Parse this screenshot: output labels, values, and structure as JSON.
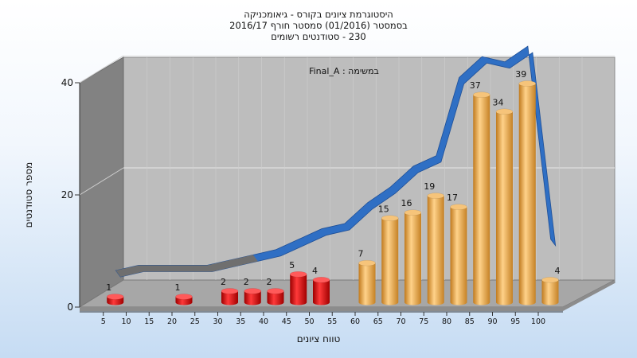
{
  "chart_data": {
    "type": "bar",
    "title_lines": [
      "היסטוגרמת ציונים בקורס - גיאומכניקה",
      "בסמסטר  (01/2016)  סמסטר חורף 2016/17",
      "230 - סטודנטים רשומים"
    ],
    "annotation": "במשימה : Final_A",
    "xlabel": "טווח ציונים",
    "ylabel": "מספר סטודנטים",
    "ylim": [
      0,
      40
    ],
    "y_ticks": [
      0,
      20,
      40
    ],
    "x_ticks": [
      "5",
      "10",
      "15",
      "20",
      "25",
      "30",
      "35",
      "40",
      "45",
      "50",
      "55",
      "60",
      "65",
      "70",
      "75",
      "80",
      "85",
      "90",
      "95",
      "100"
    ],
    "grid": true,
    "bars": [
      {
        "x": 5,
        "value": 1,
        "color": "red"
      },
      {
        "x": 20,
        "value": 1,
        "color": "red"
      },
      {
        "x": 30,
        "value": 2,
        "color": "red"
      },
      {
        "x": 35,
        "value": 2,
        "color": "red"
      },
      {
        "x": 40,
        "value": 2,
        "color": "red"
      },
      {
        "x": 45,
        "value": 5,
        "color": "red"
      },
      {
        "x": 50,
        "value": 4,
        "color": "red"
      },
      {
        "x": 60,
        "value": 7,
        "color": "orange"
      },
      {
        "x": 65,
        "value": 15,
        "color": "orange"
      },
      {
        "x": 70,
        "value": 16,
        "color": "orange"
      },
      {
        "x": 75,
        "value": 19,
        "color": "orange"
      },
      {
        "x": 80,
        "value": 17,
        "color": "orange"
      },
      {
        "x": 85,
        "value": 37,
        "color": "orange"
      },
      {
        "x": 90,
        "value": 34,
        "color": "orange"
      },
      {
        "x": 95,
        "value": 39,
        "color": "orange"
      },
      {
        "x": 100,
        "value": 4,
        "color": "orange"
      }
    ],
    "ribbon": [
      0,
      1,
      1,
      1,
      1,
      2,
      3,
      4,
      6,
      8,
      9,
      13,
      16,
      20,
      22,
      37,
      41,
      40,
      43,
      6
    ],
    "colors": {
      "red": "#e01010",
      "orange": "#e8a23c",
      "ribbon": "#2f6fc4",
      "ribbon_gray": "#6f6f6f",
      "wall": "#bcbcbc",
      "side_wall": "#808080",
      "floor": "#a6a6a6"
    }
  }
}
